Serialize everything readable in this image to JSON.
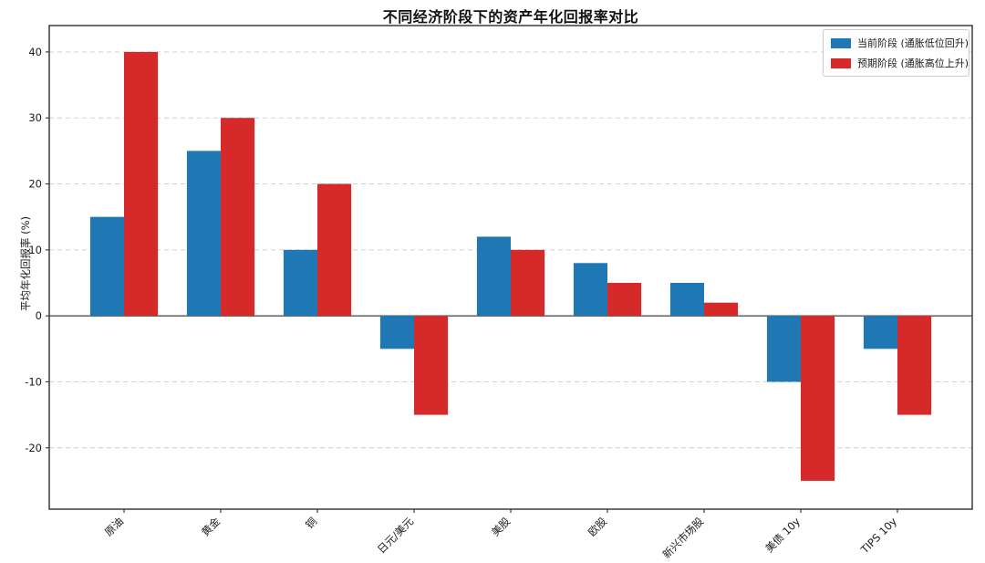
{
  "chart": {
    "title": "不同经济阶段下的资产年化回报率对比",
    "ylabel": "平均年化回报率 (%)"
  },
  "chart_data": {
    "type": "bar",
    "title": "不同经济阶段下的资产年化回报率对比",
    "xlabel": "",
    "ylabel": "平均年化回报率 (%)",
    "categories": [
      "原油",
      "黄金",
      "铜",
      "日元/美元",
      "美股",
      "欧股",
      "新兴市场股",
      "美债 10y",
      "TIPS 10y"
    ],
    "series": [
      {
        "name": "当前阶段 (通胀低位回升)",
        "color": "#1f77b4",
        "values": [
          15,
          25,
          10,
          -5,
          12,
          8,
          5,
          -10,
          -5
        ]
      },
      {
        "name": "预期阶段 (通胀高位上升)",
        "color": "#d62a2a",
        "values": [
          40,
          30,
          20,
          -15,
          10,
          5,
          2,
          -25,
          -15
        ]
      }
    ],
    "yticks": [
      -20,
      -10,
      0,
      10,
      20,
      30,
      40
    ],
    "ylim": [
      -29.3,
      44
    ],
    "grid": "horizontal-dashed",
    "zero_line": true,
    "legend_position": "upper-right",
    "colors": {
      "grid": "#cccccc",
      "zero_line": "#6e6e6e",
      "spine": "#3c3c3c",
      "tick_text": "#1a1a1a"
    }
  }
}
